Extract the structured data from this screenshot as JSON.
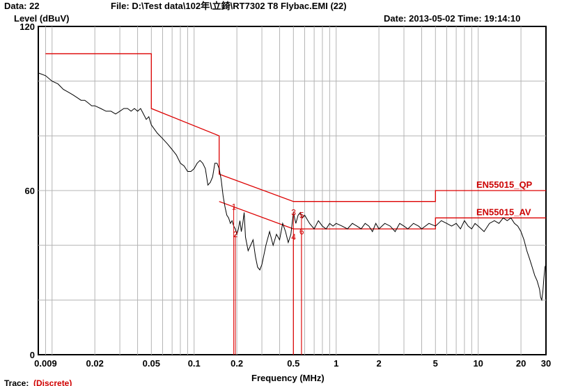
{
  "header": {
    "data_label": "Data: 22",
    "file_label": "File: D:\\Test data\\102年\\立錡\\RT7302 T8 Flybac.EMI  (22)",
    "date_time": "Date: 2013-05-02  Time: 19:14:10"
  },
  "footer": {
    "trace_label": "Trace:",
    "trace_value": "(Discrete)"
  },
  "chart_data": {
    "type": "line",
    "title": "",
    "xlabel": "Frequency (MHz)",
    "ylabel": "Level (dBuV)",
    "x_scale": "log",
    "xlim": [
      0.008,
      30
    ],
    "ylim": [
      0,
      120
    ],
    "x_ticks": [
      0.009,
      0.02,
      0.05,
      0.1,
      0.2,
      0.5,
      1,
      2,
      5,
      10,
      20,
      30
    ],
    "x_tick_labels": [
      "0.009",
      "0.02",
      "0.05",
      "0.1",
      "0.2",
      "0.5",
      "1",
      "2",
      "5",
      "10",
      "20",
      "30"
    ],
    "y_ticks": [
      0,
      60,
      120
    ],
    "y_tick_labels": [
      "0",
      "60",
      "120"
    ],
    "grid": true,
    "colors": {
      "trace": "#000000",
      "limit": "#dd0000",
      "marker": "#dd0000"
    },
    "limits": [
      {
        "name": "EN55015_QP",
        "points": [
          [
            0.009,
            110
          ],
          [
            0.05,
            110
          ],
          [
            0.05,
            90
          ],
          [
            0.15,
            80
          ],
          [
            0.15,
            66
          ],
          [
            0.5,
            56
          ],
          [
            5,
            56
          ],
          [
            5,
            60
          ],
          [
            30,
            60
          ]
        ]
      },
      {
        "name": "EN55015_AV",
        "points": [
          [
            0.15,
            56
          ],
          [
            0.5,
            46
          ],
          [
            5,
            46
          ],
          [
            5,
            50
          ],
          [
            30,
            50
          ]
        ]
      }
    ],
    "series": [
      {
        "points": [
          [
            0.008,
            103
          ],
          [
            0.009,
            102
          ],
          [
            0.01,
            100
          ],
          [
            0.011,
            99
          ],
          [
            0.012,
            97
          ],
          [
            0.013,
            96
          ],
          [
            0.014,
            95
          ],
          [
            0.015,
            94
          ],
          [
            0.016,
            93
          ],
          [
            0.017,
            93
          ],
          [
            0.018,
            92
          ],
          [
            0.019,
            91
          ],
          [
            0.02,
            91
          ],
          [
            0.022,
            90
          ],
          [
            0.024,
            89
          ],
          [
            0.026,
            89
          ],
          [
            0.028,
            88
          ],
          [
            0.03,
            89
          ],
          [
            0.032,
            90
          ],
          [
            0.034,
            90
          ],
          [
            0.036,
            89
          ],
          [
            0.038,
            90
          ],
          [
            0.04,
            89
          ],
          [
            0.042,
            90
          ],
          [
            0.044,
            88
          ],
          [
            0.046,
            86
          ],
          [
            0.048,
            87
          ],
          [
            0.05,
            84
          ],
          [
            0.055,
            81
          ],
          [
            0.06,
            79
          ],
          [
            0.065,
            77
          ],
          [
            0.07,
            75
          ],
          [
            0.075,
            73
          ],
          [
            0.08,
            70
          ],
          [
            0.085,
            69
          ],
          [
            0.09,
            67
          ],
          [
            0.095,
            67
          ],
          [
            0.1,
            68
          ],
          [
            0.105,
            70
          ],
          [
            0.11,
            71
          ],
          [
            0.115,
            70
          ],
          [
            0.12,
            68
          ],
          [
            0.125,
            62
          ],
          [
            0.13,
            63
          ],
          [
            0.135,
            65
          ],
          [
            0.14,
            70
          ],
          [
            0.145,
            70
          ],
          [
            0.15,
            68
          ],
          [
            0.155,
            64
          ],
          [
            0.16,
            58
          ],
          [
            0.165,
            54
          ],
          [
            0.17,
            51
          ],
          [
            0.175,
            50
          ],
          [
            0.18,
            48
          ],
          [
            0.185,
            49
          ],
          [
            0.19,
            47
          ],
          [
            0.195,
            46
          ],
          [
            0.2,
            44
          ],
          [
            0.205,
            46
          ],
          [
            0.21,
            49
          ],
          [
            0.215,
            45
          ],
          [
            0.22,
            48
          ],
          [
            0.225,
            52
          ],
          [
            0.23,
            43
          ],
          [
            0.24,
            38
          ],
          [
            0.25,
            40
          ],
          [
            0.26,
            42
          ],
          [
            0.27,
            36
          ],
          [
            0.28,
            32
          ],
          [
            0.29,
            31
          ],
          [
            0.3,
            33
          ],
          [
            0.32,
            40
          ],
          [
            0.34,
            45
          ],
          [
            0.36,
            40
          ],
          [
            0.38,
            44
          ],
          [
            0.4,
            42
          ],
          [
            0.42,
            48
          ],
          [
            0.44,
            45
          ],
          [
            0.46,
            41
          ],
          [
            0.48,
            44
          ],
          [
            0.5,
            52
          ],
          [
            0.52,
            48
          ],
          [
            0.54,
            51
          ],
          [
            0.56,
            52
          ],
          [
            0.58,
            50
          ],
          [
            0.6,
            51
          ],
          [
            0.65,
            48
          ],
          [
            0.7,
            46
          ],
          [
            0.75,
            49
          ],
          [
            0.8,
            47
          ],
          [
            0.85,
            46
          ],
          [
            0.9,
            48
          ],
          [
            0.95,
            47
          ],
          [
            1.0,
            48
          ],
          [
            1.1,
            47
          ],
          [
            1.2,
            46
          ],
          [
            1.3,
            48
          ],
          [
            1.4,
            47
          ],
          [
            1.5,
            46
          ],
          [
            1.6,
            48
          ],
          [
            1.7,
            47
          ],
          [
            1.8,
            45
          ],
          [
            1.9,
            48
          ],
          [
            2.0,
            46
          ],
          [
            2.2,
            48
          ],
          [
            2.4,
            47
          ],
          [
            2.6,
            45
          ],
          [
            2.8,
            48
          ],
          [
            3.0,
            47
          ],
          [
            3.2,
            46
          ],
          [
            3.5,
            48
          ],
          [
            3.8,
            47
          ],
          [
            4.0,
            46
          ],
          [
            4.5,
            48
          ],
          [
            5.0,
            47
          ],
          [
            5.5,
            49
          ],
          [
            6.0,
            48
          ],
          [
            6.5,
            47
          ],
          [
            7.0,
            48
          ],
          [
            7.5,
            46
          ],
          [
            8.0,
            49
          ],
          [
            8.5,
            47
          ],
          [
            9.0,
            46
          ],
          [
            9.5,
            48
          ],
          [
            10.0,
            47
          ],
          [
            11.0,
            45
          ],
          [
            12.0,
            48
          ],
          [
            13.0,
            49
          ],
          [
            14.0,
            48
          ],
          [
            15.0,
            50
          ],
          [
            16.0,
            49
          ],
          [
            17.0,
            50
          ],
          [
            18.0,
            48
          ],
          [
            19.0,
            47
          ],
          [
            20.0,
            45
          ],
          [
            21.0,
            42
          ],
          [
            22.0,
            38
          ],
          [
            23.0,
            35
          ],
          [
            24.0,
            32
          ],
          [
            25.0,
            29
          ],
          [
            26.0,
            27
          ],
          [
            27.0,
            24
          ],
          [
            27.5,
            21
          ],
          [
            28.0,
            20
          ],
          [
            28.5,
            23
          ],
          [
            29.0,
            28
          ],
          [
            29.5,
            32
          ],
          [
            30.0,
            33
          ]
        ]
      }
    ],
    "markers": [
      {
        "label": "1",
        "freq": 0.19,
        "level": 54
      },
      {
        "label": "2",
        "freq": 0.195,
        "level": 44
      },
      {
        "label": "3",
        "freq": 0.5,
        "level": 52
      },
      {
        "label": "4",
        "freq": 0.5,
        "level": 43
      },
      {
        "label": "5",
        "freq": 0.57,
        "level": 51
      },
      {
        "label": "6",
        "freq": 0.57,
        "level": 45
      }
    ]
  }
}
